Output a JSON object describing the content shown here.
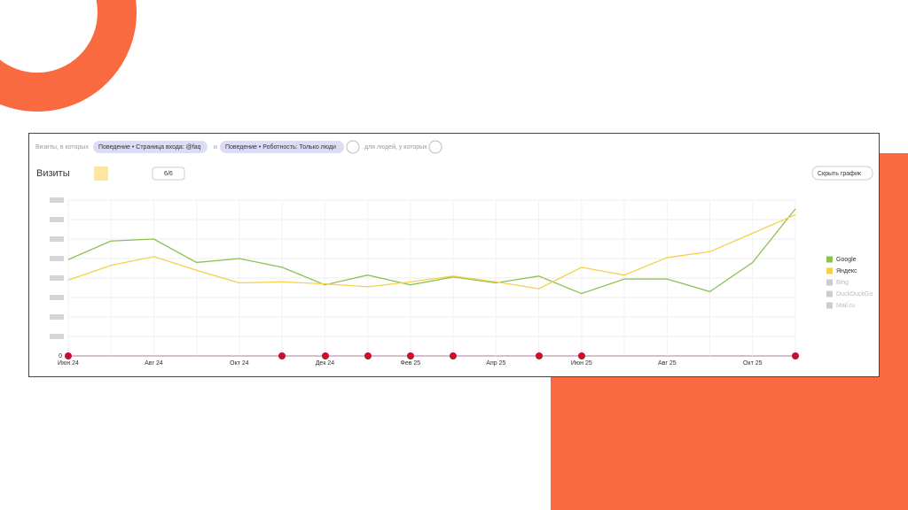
{
  "filters": {
    "lead": "Визиты, в которых",
    "chips": [
      "Поведение • Страница входа: @faq",
      "Поведение • Роботность: Только люди"
    ],
    "joiner": "и",
    "tail": "для людей, у которых"
  },
  "toolbar": {
    "counter": "6/6",
    "hide_button": "Скрыть график"
  },
  "chart_data": {
    "type": "line",
    "title": "Визиты",
    "categories": [
      "Июн 24",
      null,
      "Авг 24",
      null,
      "Окт 24",
      null,
      "Дек 24",
      null,
      "Фев 25",
      null,
      "Апр 25",
      null,
      "Июн 25",
      null,
      "Авг 25",
      null,
      "Окт 25",
      null
    ],
    "series": [
      {
        "name": "Google",
        "color": "#8cc152",
        "values": [
          4.95,
          5.9,
          6.0,
          4.8,
          5.0,
          4.55,
          3.65,
          4.15,
          3.65,
          4.05,
          3.75,
          4.1,
          3.2,
          3.95,
          3.95,
          3.3,
          4.8,
          7.55
        ]
      },
      {
        "name": "Яндекс",
        "color": "#f5d04c",
        "values": [
          3.9,
          4.65,
          5.1,
          4.4,
          3.75,
          3.8,
          3.7,
          3.55,
          3.8,
          4.1,
          3.8,
          3.45,
          4.55,
          4.15,
          5.05,
          5.35,
          6.3,
          7.25
        ]
      }
    ],
    "legend_inactive": [
      "Bing",
      "DuckDuckGo",
      "Mail.ru"
    ],
    "ylim": [
      0,
      8
    ],
    "yticks": [
      0
    ],
    "grid": true
  }
}
